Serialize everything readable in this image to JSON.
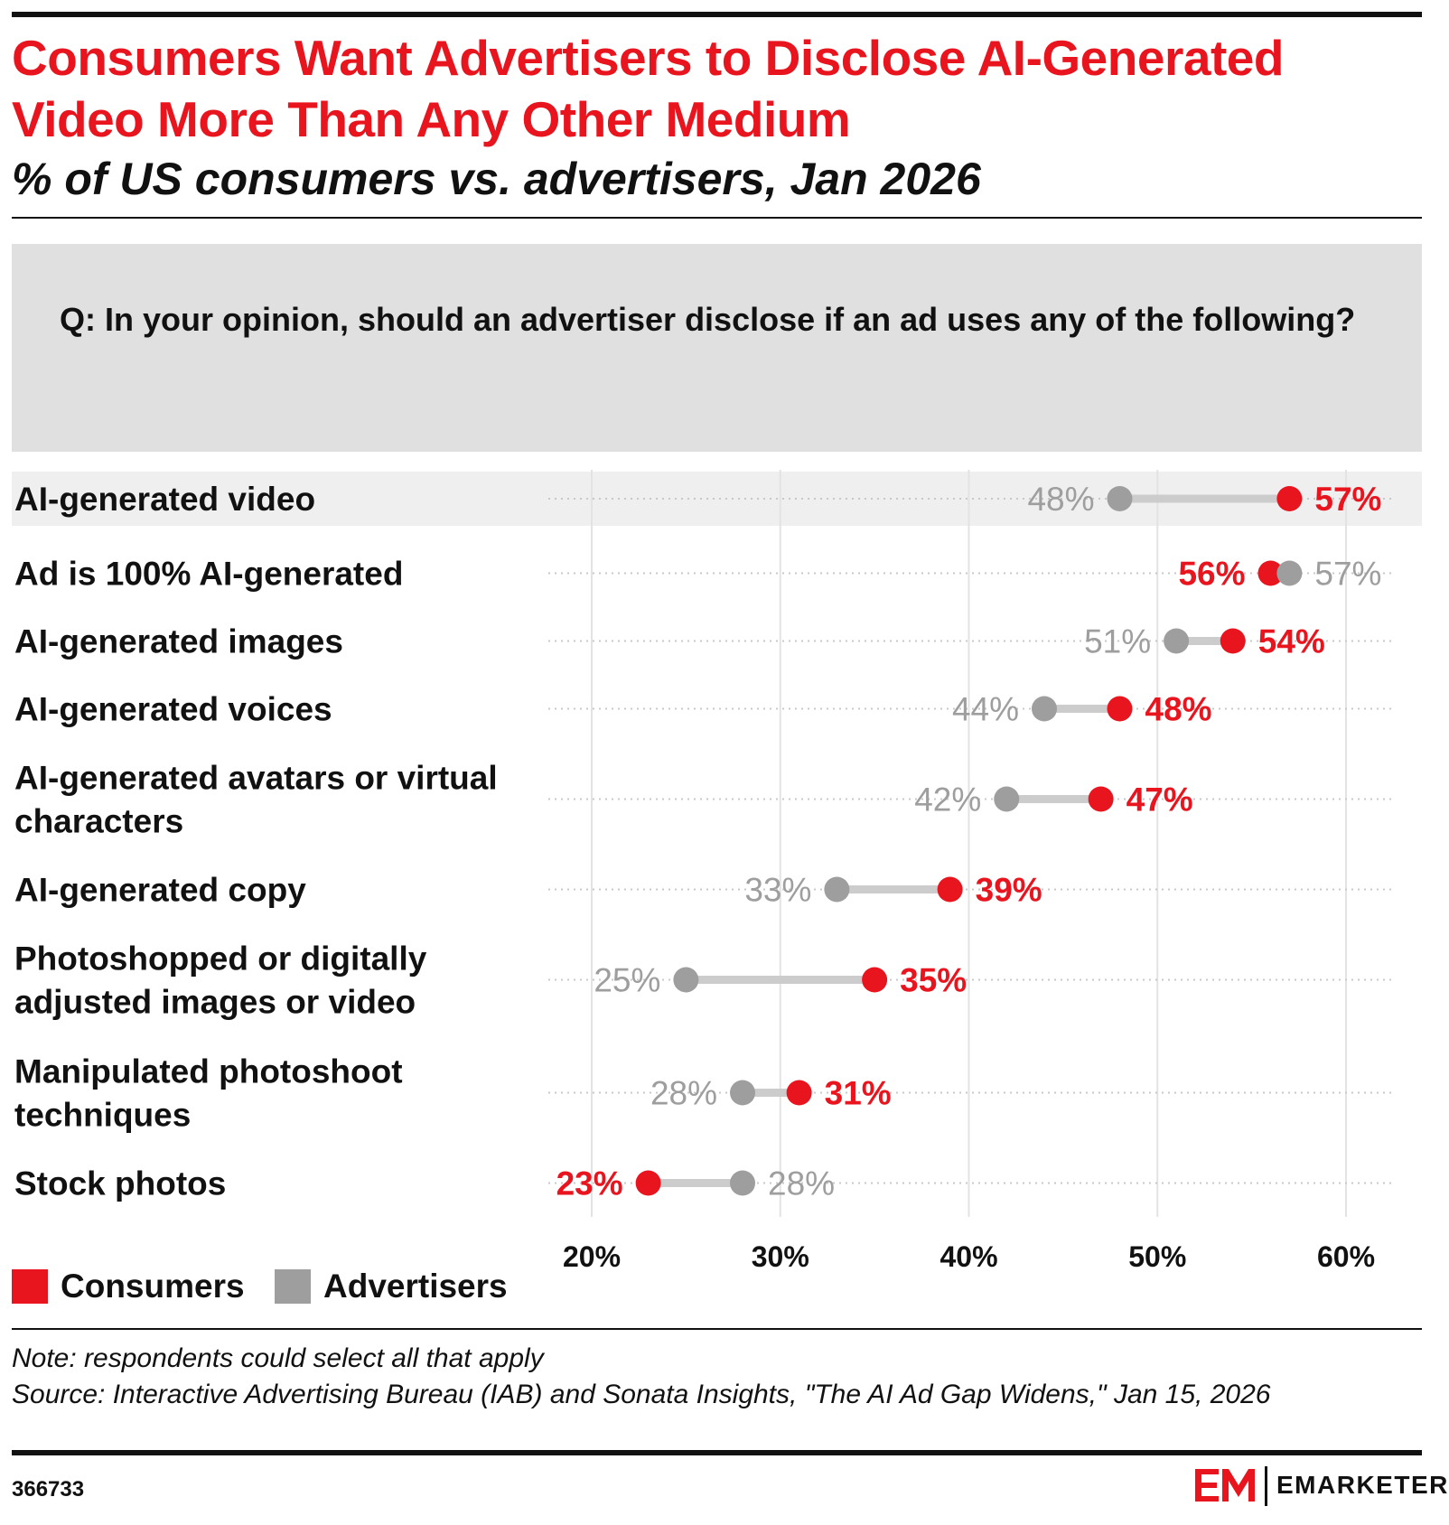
{
  "title": "Consumers Want Advertisers to Disclose AI-Generated Video More Than Any Other Medium",
  "subtitle": "% of US consumers vs. advertisers, Jan 2026",
  "question": "Q: In your opinion, should an advertiser disclose if an ad uses any of the following?",
  "colors": {
    "consumers": "#e8141e",
    "advertisers": "#9e9e9e",
    "connector": "#cccccc",
    "highlight_row": "#efefef",
    "question_box": "#e0e0e0",
    "brand_red": "#e8141e"
  },
  "chart_data": {
    "type": "dumbbell",
    "value_suffix": "%",
    "xlim": [
      20,
      60
    ],
    "x_ticks": [
      20,
      30,
      40,
      50,
      60
    ],
    "x_tick_labels": [
      "20%",
      "30%",
      "40%",
      "50%",
      "60%"
    ],
    "grid": true,
    "legend_placement": "bottom-left",
    "highlighted_category": "AI-generated video",
    "series": [
      {
        "name": "Consumers",
        "color": "#e8141e"
      },
      {
        "name": "Advertisers",
        "color": "#9e9e9e"
      }
    ],
    "categories": [
      {
        "label": "AI-generated video",
        "consumers": 57,
        "advertisers": 48
      },
      {
        "label": "Ad is 100% AI-generated",
        "consumers": 56,
        "advertisers": 57
      },
      {
        "label": "AI-generated images",
        "consumers": 54,
        "advertisers": 51
      },
      {
        "label": "AI-generated voices",
        "consumers": 48,
        "advertisers": 44
      },
      {
        "label": "AI-generated avatars or virtual characters",
        "consumers": 47,
        "advertisers": 42
      },
      {
        "label": "AI-generated copy",
        "consumers": 39,
        "advertisers": 33
      },
      {
        "label": "Photoshopped or digitally adjusted images or video",
        "consumers": 35,
        "advertisers": 25
      },
      {
        "label": "Manipulated photoshoot techniques",
        "consumers": 31,
        "advertisers": 28
      },
      {
        "label": "Stock photos",
        "consumers": 23,
        "advertisers": 28
      }
    ]
  },
  "legend": {
    "consumers_label": "Consumers",
    "advertisers_label": "Advertisers"
  },
  "note": "Note: respondents could select all that apply",
  "source": "Source: Interactive Advertising Bureau (IAB) and Sonata Insights, \"The AI Ad Gap Widens,\" Jan 15, 2026",
  "chart_id": "366733",
  "brand": {
    "mark": "EM",
    "name": "EMARKETER"
  }
}
